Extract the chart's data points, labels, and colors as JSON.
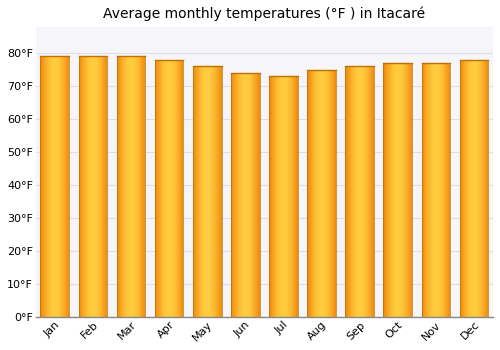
{
  "title": "Average monthly temperatures (°F ) in Itacaré",
  "months": [
    "Jan",
    "Feb",
    "Mar",
    "Apr",
    "May",
    "Jun",
    "Jul",
    "Aug",
    "Sep",
    "Oct",
    "Nov",
    "Dec"
  ],
  "values": [
    79,
    79,
    79,
    78,
    76,
    74,
    73,
    75,
    76,
    77,
    77,
    78
  ],
  "ylim": [
    0,
    88
  ],
  "yticks": [
    0,
    10,
    20,
    30,
    40,
    50,
    60,
    70,
    80
  ],
  "ytick_labels": [
    "0°F",
    "10°F",
    "20°F",
    "30°F",
    "40°F",
    "50°F",
    "60°F",
    "70°F",
    "80°F"
  ],
  "bar_color_center": "#FFCC44",
  "bar_color_edge": "#F08000",
  "bar_top_color": "#E8A000",
  "background_color": "#FFFFFF",
  "plot_bg_color": "#F5F5FA",
  "grid_color": "#DDDDEE",
  "title_fontsize": 10,
  "tick_fontsize": 8,
  "bar_width": 0.75
}
